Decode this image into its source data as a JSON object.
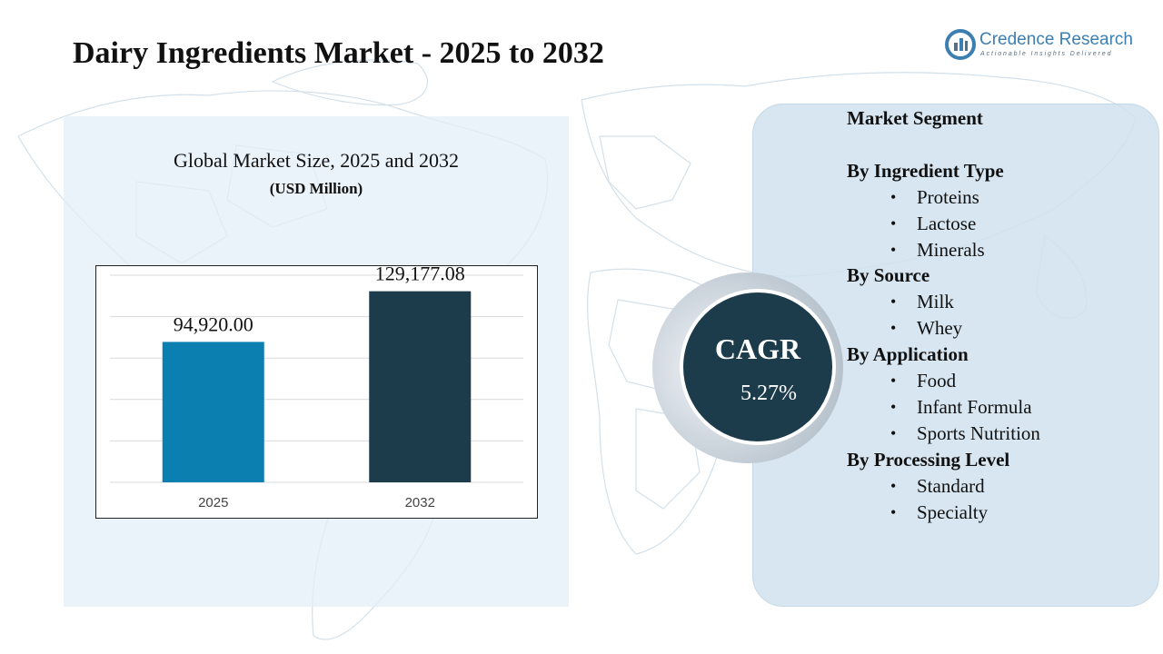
{
  "title": "Dairy Ingredients  Market - 2025 to 2032",
  "logo": {
    "name": "Credence Research",
    "tagline": "Actionable Insights Delivered",
    "icon": "credence-logo-icon",
    "color": "#3c7fb1"
  },
  "chart_data": {
    "type": "bar",
    "title": "Global Market Size, 2025 and 2032",
    "subtitle": "(USD Million)",
    "categories": [
      "2025",
      "2032"
    ],
    "values": [
      94920.0,
      129177.08
    ],
    "value_labels": [
      "94,920.00",
      "129,177.08"
    ],
    "colors": [
      "#0b7fb0",
      "#1d3c4b"
    ],
    "ylim": [
      0,
      140000
    ],
    "grid": true
  },
  "cagr": {
    "label": "CAGR",
    "value": "5.27%",
    "color": "#1d3c4b"
  },
  "segments": {
    "header": "Market Segment",
    "groups": [
      {
        "title": "By Ingredient Type",
        "items": [
          "Proteins",
          "Lactose",
          "Minerals"
        ]
      },
      {
        "title": "By Source",
        "items": [
          "Milk",
          "Whey"
        ]
      },
      {
        "title": "By Application",
        "items": [
          "Food",
          "Infant Formula",
          "Sports Nutrition"
        ]
      },
      {
        "title": "By Processing Level",
        "items": [
          "Standard",
          "Specialty"
        ]
      }
    ]
  }
}
